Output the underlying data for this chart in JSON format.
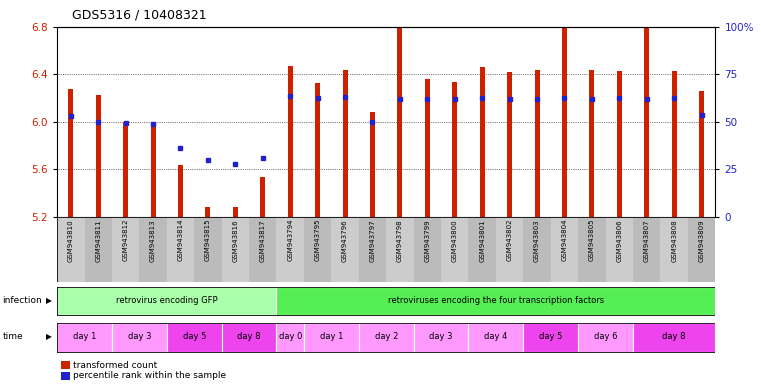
{
  "title": "GDS5316 / 10408321",
  "samples": [
    "GSM943810",
    "GSM943811",
    "GSM943812",
    "GSM943813",
    "GSM943814",
    "GSM943815",
    "GSM943816",
    "GSM943817",
    "GSM943794",
    "GSM943795",
    "GSM943796",
    "GSM943797",
    "GSM943798",
    "GSM943799",
    "GSM943800",
    "GSM943801",
    "GSM943802",
    "GSM943803",
    "GSM943804",
    "GSM943805",
    "GSM943806",
    "GSM943807",
    "GSM943808",
    "GSM943809"
  ],
  "red_values": [
    6.28,
    6.23,
    6.0,
    5.98,
    5.64,
    5.28,
    5.28,
    5.54,
    6.47,
    6.33,
    6.44,
    6.08,
    6.79,
    6.36,
    6.34,
    6.46,
    6.42,
    6.44,
    6.79,
    6.44,
    6.43,
    6.79,
    6.43,
    6.26
  ],
  "blue_y": [
    6.05,
    6.0,
    5.99,
    5.98,
    5.78,
    5.68,
    5.65,
    5.7,
    6.22,
    6.2,
    6.21,
    6.0,
    6.19,
    6.19,
    6.19,
    6.2,
    6.19,
    6.19,
    6.2,
    6.19,
    6.2,
    6.19,
    6.2,
    6.06
  ],
  "ymin": 5.2,
  "ymax": 6.8,
  "yticks_left": [
    5.2,
    5.6,
    6.0,
    6.4,
    6.8
  ],
  "yticks_right": [
    0,
    25,
    50,
    75,
    100
  ],
  "bar_color": "#CC2200",
  "dot_color": "#2222CC",
  "infection_light": "#AAFFAA",
  "infection_dark": "#55EE55",
  "time_light": "#FF99FF",
  "time_dark": "#EE44EE",
  "infection_groups": [
    {
      "label": "retrovirus encoding GFP",
      "start": 0,
      "end": 8,
      "light": true
    },
    {
      "label": "retroviruses encoding the four transcription factors",
      "start": 8,
      "end": 24,
      "light": false
    }
  ],
  "time_groups": [
    {
      "label": "day 1",
      "start": 0,
      "end": 2,
      "dark": false
    },
    {
      "label": "day 3",
      "start": 2,
      "end": 4,
      "dark": false
    },
    {
      "label": "day 5",
      "start": 4,
      "end": 6,
      "dark": true
    },
    {
      "label": "day 8",
      "start": 6,
      "end": 8,
      "dark": true
    },
    {
      "label": "day 0",
      "start": 8,
      "end": 9,
      "dark": false
    },
    {
      "label": "day 1",
      "start": 9,
      "end": 11,
      "dark": false
    },
    {
      "label": "day 2",
      "start": 11,
      "end": 13,
      "dark": false
    },
    {
      "label": "day 3",
      "start": 13,
      "end": 15,
      "dark": false
    },
    {
      "label": "day 4",
      "start": 15,
      "end": 17,
      "dark": false
    },
    {
      "label": "day 5",
      "start": 17,
      "end": 19,
      "dark": true
    },
    {
      "label": "day 6",
      "start": 19,
      "end": 21,
      "dark": false
    },
    {
      "label": "day 8",
      "start": 21,
      "end": 24,
      "dark": true
    }
  ]
}
